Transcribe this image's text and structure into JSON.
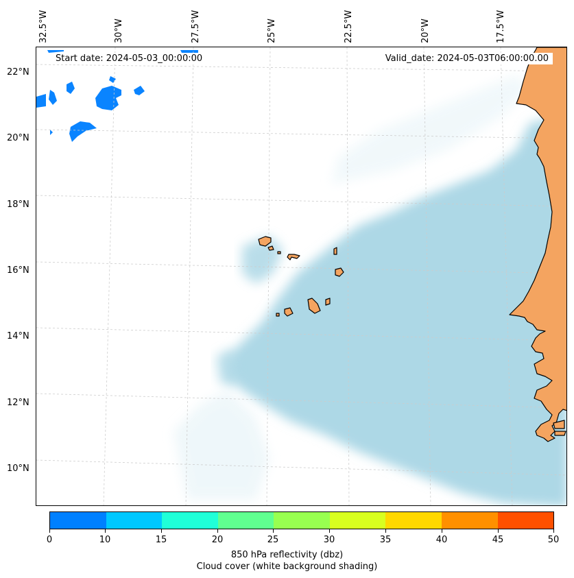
{
  "map": {
    "start_date": "Start date: 2024-05-03_00:00:00",
    "valid_date": "Valid_date: 2024-05-03T06:00:00.00",
    "lon_labels": [
      "32.5°W",
      "30°W",
      "27.5°W",
      "25°W",
      "22.5°W",
      "20°W",
      "17.5°W"
    ],
    "lat_labels": [
      "22°N",
      "20°N",
      "18°N",
      "16°N",
      "14°N",
      "12°N",
      "10°N"
    ],
    "colors": {
      "land": "#f4a460",
      "coast": "#000000",
      "cloud": "#add8e6",
      "grid": "#bbbbbb"
    }
  },
  "colorbar": {
    "ticks": [
      "0",
      "10",
      "15",
      "20",
      "25",
      "30",
      "35",
      "40",
      "45",
      "50"
    ],
    "colors": [
      "#0080ff",
      "#00c8ff",
      "#20ffd8",
      "#60ff90",
      "#98ff50",
      "#d8ff20",
      "#ffd800",
      "#ff9000",
      "#ff5000"
    ],
    "label_line1": "850 hPa reflectivity (dbz)",
    "label_line2": "Cloud cover (white background shading)"
  }
}
